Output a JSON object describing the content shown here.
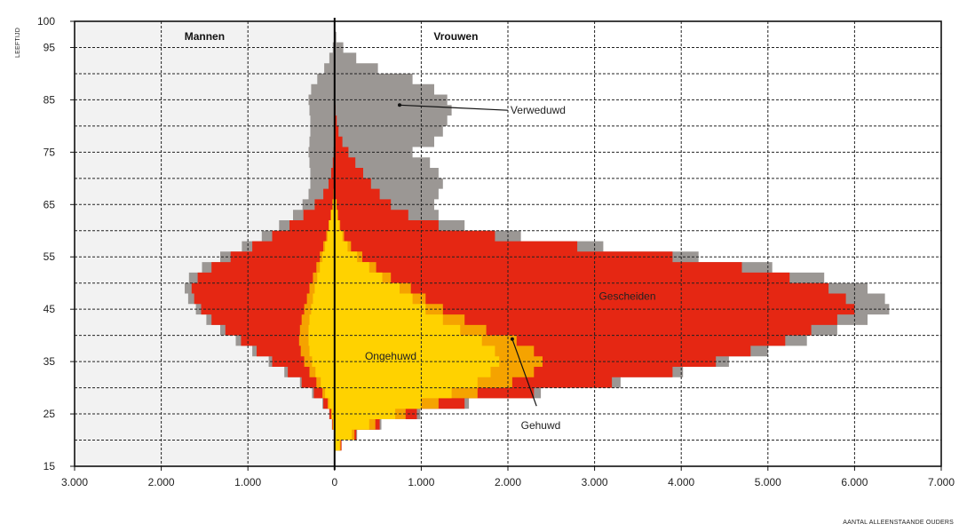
{
  "chart_data": {
    "type": "area",
    "layout": "population-pyramid",
    "ylabel": "LEEFTIJD",
    "xlabel": "AANTAL ALLEENSTAANDE OUDERS",
    "xlim": [
      -3000,
      7000
    ],
    "ylim": [
      15,
      100
    ],
    "x_ticks": [
      -3000,
      -2000,
      -1000,
      0,
      1000,
      2000,
      3000,
      4000,
      5000,
      6000,
      7000
    ],
    "x_tick_labels": [
      "3.000",
      "2.000",
      "1.000",
      "0",
      "1.000",
      "2.000",
      "3.000",
      "4.000",
      "5.000",
      "6.000",
      "7.000"
    ],
    "y_ticks": [
      15,
      25,
      35,
      45,
      55,
      65,
      75,
      85,
      95,
      100
    ],
    "y_tick_labels": [
      "15",
      "25",
      "35",
      "45",
      "55",
      "65",
      "75",
      "85",
      "95",
      "100"
    ],
    "grid": true,
    "panes": [
      {
        "name": "Mannen",
        "side": "left",
        "background": "#f2f2f2"
      },
      {
        "name": "Vrouwen",
        "side": "right",
        "background": "#ffffff"
      }
    ],
    "ages": [
      19,
      21,
      23,
      25,
      27,
      29,
      31,
      33,
      35,
      37,
      39,
      41,
      43,
      45,
      47,
      49,
      51,
      53,
      55,
      57,
      59,
      61,
      63,
      65,
      67,
      69,
      71,
      73,
      75,
      77,
      79,
      81,
      83,
      85,
      87,
      89,
      91,
      93,
      95,
      97
    ],
    "series": [
      {
        "name": "Ongehuwd",
        "color": "#ffd200",
        "men": [
          0,
          0,
          -20,
          -30,
          -60,
          -110,
          -160,
          -220,
          -260,
          -290,
          -300,
          -300,
          -290,
          -270,
          -250,
          -230,
          -200,
          -170,
          -140,
          -110,
          -80,
          -60,
          -40,
          -20,
          -10,
          0,
          0,
          0,
          0,
          0,
          0,
          0,
          0,
          0,
          0,
          0,
          0,
          0,
          0,
          0
        ],
        "women": [
          60,
          200,
          400,
          700,
          1000,
          1350,
          1650,
          1800,
          1900,
          1850,
          1700,
          1450,
          1250,
          1050,
          900,
          750,
          550,
          400,
          260,
          150,
          90,
          50,
          30,
          20,
          0,
          0,
          0,
          0,
          0,
          0,
          0,
          0,
          0,
          0,
          0,
          0,
          0,
          0,
          0,
          0
        ]
      },
      {
        "name": "Gehuwd",
        "color": "#f5a300",
        "men": [
          0,
          0,
          -20,
          -40,
          -80,
          -140,
          -210,
          -290,
          -350,
          -390,
          -410,
          -400,
          -380,
          -350,
          -320,
          -290,
          -250,
          -210,
          -170,
          -130,
          -95,
          -70,
          -45,
          -25,
          -12,
          0,
          0,
          0,
          0,
          0,
          0,
          0,
          0,
          0,
          0,
          0,
          0,
          0,
          0,
          0
        ],
        "women": [
          70,
          230,
          470,
          820,
          1200,
          1650,
          2050,
          2300,
          2400,
          2300,
          2100,
          1750,
          1500,
          1250,
          1050,
          880,
          650,
          480,
          320,
          190,
          110,
          65,
          40,
          25,
          0,
          0,
          0,
          0,
          0,
          0,
          0,
          0,
          0,
          0,
          0,
          0,
          0,
          0,
          0,
          0
        ]
      },
      {
        "name": "Gescheiden",
        "color": "#e52713",
        "men": [
          0,
          0,
          -30,
          -60,
          -130,
          -240,
          -380,
          -540,
          -720,
          -900,
          -1080,
          -1260,
          -1420,
          -1540,
          -1620,
          -1650,
          -1580,
          -1420,
          -1200,
          -950,
          -720,
          -520,
          -360,
          -230,
          -130,
          -70,
          -40,
          -20,
          -10,
          0,
          0,
          0,
          0,
          0,
          0,
          0,
          0,
          0,
          0,
          0
        ],
        "women": [
          80,
          250,
          520,
          950,
          1500,
          2300,
          3200,
          3900,
          4400,
          4800,
          5200,
          5500,
          5800,
          6000,
          5900,
          5700,
          5250,
          4700,
          3900,
          2800,
          1850,
          1200,
          850,
          650,
          520,
          420,
          330,
          240,
          160,
          90,
          45,
          25,
          10,
          0,
          0,
          0,
          0,
          0,
          0,
          0
        ]
      },
      {
        "name": "Verweduwd",
        "color": "#9b9794",
        "men": [
          0,
          0,
          -30,
          -60,
          -140,
          -260,
          -400,
          -580,
          -760,
          -950,
          -1140,
          -1320,
          -1480,
          -1600,
          -1690,
          -1730,
          -1680,
          -1530,
          -1320,
          -1070,
          -840,
          -640,
          -480,
          -370,
          -300,
          -280,
          -280,
          -290,
          -300,
          -290,
          -280,
          -280,
          -290,
          -300,
          -270,
          -200,
          -120,
          -60,
          -20,
          0
        ],
        "women": [
          80,
          260,
          540,
          990,
          1550,
          2380,
          3300,
          4020,
          4550,
          5000,
          5450,
          5800,
          6150,
          6400,
          6350,
          6150,
          5650,
          5050,
          4200,
          3100,
          2150,
          1500,
          1200,
          1150,
          1200,
          1250,
          1200,
          1100,
          900,
          1150,
          1250,
          1300,
          1350,
          1300,
          1150,
          900,
          500,
          250,
          100,
          20
        ]
      }
    ],
    "annotations": [
      {
        "text": "Verweduwd",
        "target_series": "Verweduwd"
      },
      {
        "text": "Gescheiden",
        "target_series": "Gescheiden"
      },
      {
        "text": "Ongehuwd",
        "target_series": "Ongehuwd"
      },
      {
        "text": "Gehuwd",
        "target_series": "Gehuwd"
      }
    ]
  }
}
